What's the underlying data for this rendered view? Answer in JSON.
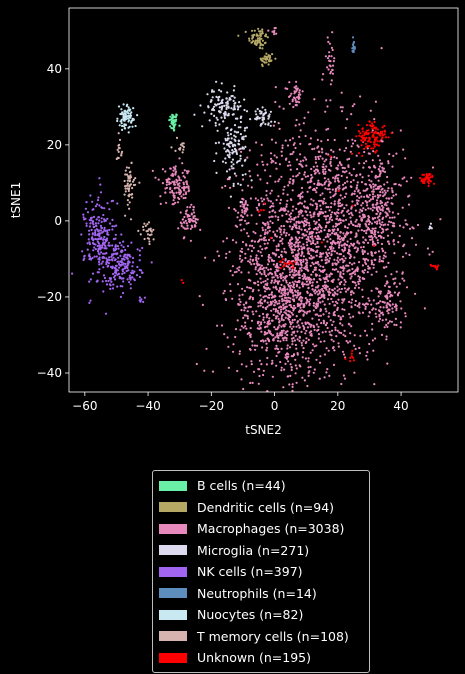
{
  "chart_data": {
    "type": "scatter",
    "xlabel": "tSNE2",
    "ylabel": "tSNE1",
    "xlim": [
      -65,
      58
    ],
    "ylim": [
      -45,
      56
    ],
    "xticks": [
      -60,
      -40,
      -20,
      0,
      20,
      40
    ],
    "yticks": [
      -40,
      -20,
      0,
      20,
      40
    ],
    "grid": false,
    "legend_placement": "below",
    "background": "#000000",
    "series": [
      {
        "name": "B cells (n=44)",
        "color": "#69f0a6",
        "clusters": [
          {
            "x": -32,
            "y": 26,
            "sx": 0.7,
            "sy": 1.3,
            "n": 44
          }
        ]
      },
      {
        "name": "Dendritic cells (n=94)",
        "color": "#b5a865",
        "clusters": [
          {
            "x": -5,
            "y": 48,
            "sx": 1.6,
            "sy": 1.5,
            "n": 60
          },
          {
            "x": -2.5,
            "y": 42.5,
            "sx": 1.2,
            "sy": 1.0,
            "n": 34
          }
        ]
      },
      {
        "name": "Macrophages (n=3038)",
        "color": "#e889bd",
        "clusters": [
          {
            "x": 14,
            "y": -6,
            "sx": 12,
            "sy": 15,
            "n": 1900
          },
          {
            "x": 2,
            "y": -24,
            "sx": 8,
            "sy": 9,
            "n": 550
          },
          {
            "x": 33,
            "y": 3,
            "sx": 4,
            "sy": 7,
            "n": 220
          },
          {
            "x": 36,
            "y": -22,
            "sx": 2.5,
            "sy": 3,
            "n": 80
          },
          {
            "x": -31,
            "y": 9,
            "sx": 2.5,
            "sy": 2.5,
            "n": 120
          },
          {
            "x": -27,
            "y": 0,
            "sx": 1.5,
            "sy": 2,
            "n": 60
          },
          {
            "x": 7,
            "y": 33,
            "sx": 1.2,
            "sy": 1.5,
            "n": 40
          },
          {
            "x": 17.5,
            "y": 42,
            "sx": 0.8,
            "sy": 3,
            "n": 30
          },
          {
            "x": 0,
            "y": 50,
            "sx": 0.8,
            "sy": 0.5,
            "n": 8
          },
          {
            "x": -10,
            "y": 3,
            "sx": 1,
            "sy": 2,
            "n": 30
          }
        ]
      },
      {
        "name": "Microglia (n=271)",
        "color": "#ddd9ef",
        "clusters": [
          {
            "x": -16,
            "y": 30,
            "sx": 2.8,
            "sy": 2.2,
            "n": 110
          },
          {
            "x": -13,
            "y": 19,
            "sx": 2.2,
            "sy": 4,
            "n": 110
          },
          {
            "x": -4,
            "y": 27.5,
            "sx": 2,
            "sy": 1.2,
            "n": 45
          },
          {
            "x": 49,
            "y": -1.5,
            "sx": 0.4,
            "sy": 0.4,
            "n": 6
          }
        ]
      },
      {
        "name": "NK cells (n=397)",
        "color": "#a265f2",
        "clusters": [
          {
            "x": -55,
            "y": -5,
            "sx": 2.5,
            "sy": 6,
            "n": 230
          },
          {
            "x": -48,
            "y": -12,
            "sx": 3,
            "sy": 3,
            "n": 160
          },
          {
            "x": -42,
            "y": -21,
            "sx": 0.5,
            "sy": 0.6,
            "n": 7
          }
        ]
      },
      {
        "name": "Neutrophils (n=14)",
        "color": "#5d8dbd",
        "clusters": [
          {
            "x": 25,
            "y": 45.5,
            "sx": 0.3,
            "sy": 1,
            "n": 14
          }
        ]
      },
      {
        "name": "Nuocytes (n=82)",
        "color": "#c8e8f2",
        "clusters": [
          {
            "x": -47,
            "y": 27,
            "sx": 1.2,
            "sy": 1.5,
            "n": 82
          }
        ]
      },
      {
        "name": "T memory cells (n=108)",
        "color": "#d6b3af",
        "clusters": [
          {
            "x": -46,
            "y": 9,
            "sx": 1,
            "sy": 3,
            "n": 55
          },
          {
            "x": -49,
            "y": 19,
            "sx": 0.5,
            "sy": 1.5,
            "n": 15
          },
          {
            "x": -40,
            "y": -3,
            "sx": 1,
            "sy": 1.5,
            "n": 25
          },
          {
            "x": -30,
            "y": 20,
            "sx": 1,
            "sy": 1,
            "n": 13
          }
        ]
      },
      {
        "name": "Unknown (n=195)",
        "color": "#ff0000",
        "clusters": [
          {
            "x": 31,
            "y": 22,
            "sx": 2.5,
            "sy": 2.2,
            "n": 110
          },
          {
            "x": 48,
            "y": 11,
            "sx": 1.3,
            "sy": 0.8,
            "n": 40
          },
          {
            "x": 51,
            "y": -12,
            "sx": 0.8,
            "sy": 0.3,
            "n": 10
          },
          {
            "x": 4,
            "y": -11,
            "sx": 1.5,
            "sy": 0.7,
            "n": 15
          },
          {
            "x": 24,
            "y": -36,
            "sx": 0.6,
            "sy": 1,
            "n": 8
          },
          {
            "x": -29,
            "y": -16,
            "sx": 0.2,
            "sy": 0.3,
            "n": 2
          },
          {
            "x": -4,
            "y": 3,
            "sx": 1.2,
            "sy": 3,
            "n": 5
          },
          {
            "x": 20,
            "y": 2,
            "sx": 6,
            "sy": 8,
            "n": 5
          }
        ]
      }
    ]
  }
}
